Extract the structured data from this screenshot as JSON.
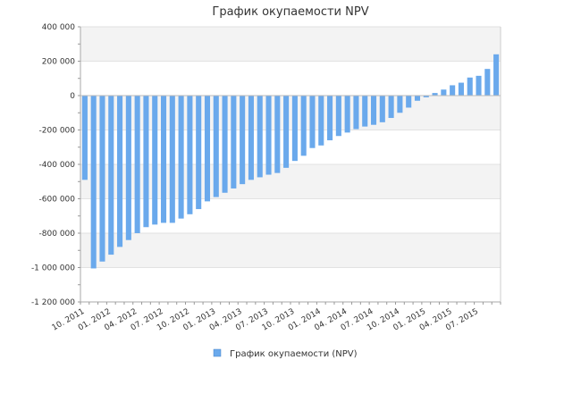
{
  "chart_data": {
    "type": "bar",
    "title": "График окупаемости NPV",
    "series": [
      {
        "name": "График окупаемости (NPV)",
        "color": "#6aa9ec",
        "values": [
          -490000,
          -1005000,
          -965000,
          -925000,
          -880000,
          -840000,
          -800000,
          -765000,
          -750000,
          -740000,
          -740000,
          -715000,
          -690000,
          -660000,
          -615000,
          -590000,
          -565000,
          -540000,
          -515000,
          -490000,
          -475000,
          -460000,
          -450000,
          -420000,
          -380000,
          -350000,
          -305000,
          -290000,
          -260000,
          -235000,
          -215000,
          -195000,
          -180000,
          -170000,
          -155000,
          -130000,
          -100000,
          -70000,
          -30000,
          -10000,
          15000,
          35000,
          60000,
          75000,
          105000,
          115000,
          155000,
          240000
        ]
      }
    ],
    "x_tick_labels": [
      "10. 2011",
      "01. 2012",
      "04. 2012",
      "07. 2012",
      "10. 2012",
      "01. 2013",
      "04. 2013",
      "07. 2013",
      "10. 2013",
      "01. 2014",
      "04. 2014",
      "07. 2014",
      "10. 2014",
      "01. 2015",
      "04. 2015",
      "07. 2015"
    ],
    "x_tick_every": 3,
    "y_tick_labels": [
      "400 000",
      "200 000",
      "0",
      "-200 000",
      "-400 000",
      "-600 000",
      "-800 000",
      "-1 000 000",
      "-1 200 000"
    ],
    "ylim": [
      -1200000,
      400000
    ],
    "y_tick_step": 200000,
    "grid": true,
    "band_color": "#f3f3f3",
    "legend_position": "bottom-center"
  }
}
